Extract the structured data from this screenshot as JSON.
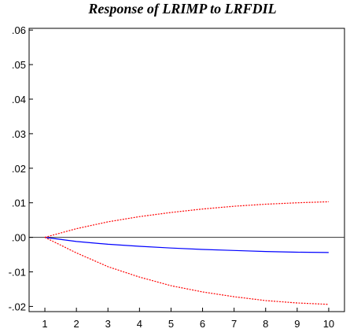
{
  "chart_data": {
    "type": "line",
    "title": "Response of LRIMP to LRFDIL",
    "xlabel": "",
    "ylabel": "",
    "x": [
      1,
      2,
      3,
      4,
      5,
      6,
      7,
      8,
      9,
      10
    ],
    "x_tick_labels": [
      "1",
      "2",
      "3",
      "4",
      "5",
      "6",
      "7",
      "8",
      "9",
      "10"
    ],
    "y_tick_values": [
      -0.02,
      -0.01,
      0.0,
      0.01,
      0.02,
      0.03,
      0.04,
      0.05,
      0.06
    ],
    "y_tick_labels": [
      "-.02",
      "-.01",
      ".00",
      ".01",
      ".02",
      ".03",
      ".04",
      ".05",
      ".06"
    ],
    "ylim": [
      -0.0215,
      0.0605
    ],
    "xlim": [
      0.5,
      10.5
    ],
    "grid": false,
    "zero_line": true,
    "series": [
      {
        "key": "response",
        "color": "#0000ff",
        "dashed": false,
        "values": [
          0.0,
          -0.0012,
          -0.002,
          -0.0026,
          -0.0031,
          -0.0035,
          -0.0038,
          -0.0041,
          -0.0043,
          -0.0044
        ]
      },
      {
        "key": "upper_band",
        "color": "#ff0000",
        "dashed": true,
        "values": [
          0.0,
          0.0025,
          0.0045,
          0.006,
          0.0072,
          0.0082,
          0.009,
          0.0096,
          0.01,
          0.0103
        ]
      },
      {
        "key": "lower_band",
        "color": "#ff0000",
        "dashed": true,
        "values": [
          0.0,
          -0.0045,
          -0.0085,
          -0.0115,
          -0.014,
          -0.0158,
          -0.0172,
          -0.0183,
          -0.019,
          -0.0194
        ]
      }
    ]
  }
}
